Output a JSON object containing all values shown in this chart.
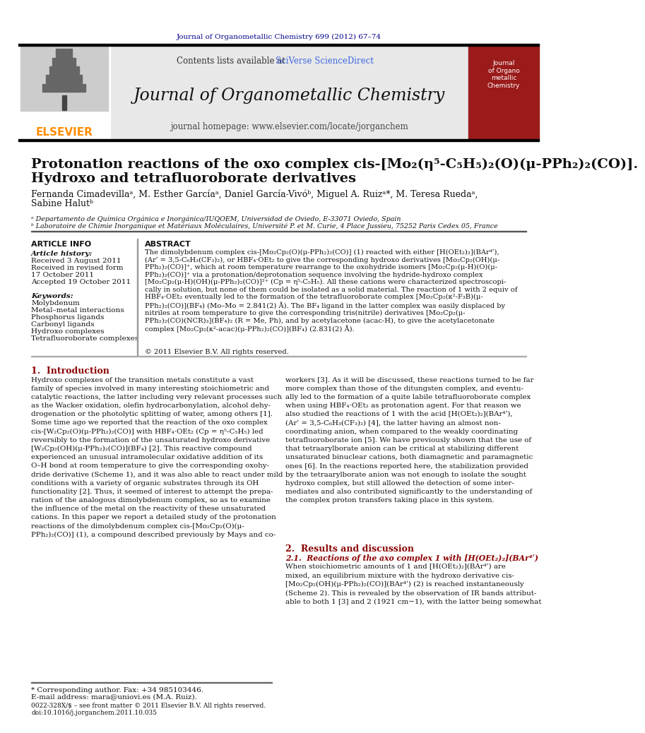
{
  "page_bg": "#ffffff",
  "top_journal_text": "Journal of Organometallic Chemistry 699 (2012) 67–74",
  "top_journal_color": "#00008B",
  "elsevier_color": "#FF8C00",
  "elsevier_text": "ELSEVIER",
  "journal_name": "Journal of Organometallic Chemistry",
  "journal_homepage": "journal homepage: www.elsevier.com/locate/jorganchem",
  "contents_text": "Contents lists available at ",
  "sciverse_text": "SciVerse ScienceDirect",
  "sciverse_color": "#4169E1",
  "title_line1": "Protonation reactions of the oxo complex cis-[Mo₂(η⁵-C₅H₅)₂(O)(μ-PPh₂)₂(CO)].",
  "title_line2": "Hydroxo and tetrafluoroborate derivatives",
  "affil_a": "ᵃ Departamento de Química Orgánica e Inorgánica/IUQOEM, Universidad de Oviedo, E-33071 Oviedo, Spain",
  "affil_b": "ᵇ Laboratoire de Chimie Inorganique et Matériaux Moléculaires, Université P. et M. Curie, 4 Place Jussieu, 75252 Paris Cedex 05, France",
  "article_info_header": "ARTICLE INFO",
  "abstract_header": "ABSTRACT",
  "article_history_label": "Article history:",
  "received_label": "Received 3 August 2011",
  "received_revised": "Received in revised form",
  "received_revised2": "17 October 2011",
  "accepted_label": "Accepted 19 October 2011",
  "keywords_label": "Keywords:",
  "kw1": "Molybdenum",
  "kw2": "Metal–metal interactions",
  "kw3": "Phosphorus ligands",
  "kw4": "Carbonyl ligands",
  "kw5": "Hydroxo complexes",
  "kw6": "Tetrafluoroborate complexes",
  "abstract_text": "The dimolybdenum complex cis-[Mo₂Cp₂(O)(μ-PPh₂)₂(CO)] (1) reacted with either [H(OEt₂)₂](BAr⁴ʹ),\n(Arʹ = 3,5-C₆H₃(CF₃)₂), or HBF₄·OEt₂ to give the corresponding hydroxo derivatives [Mo₂Cp₂(OH)(μ-\nPPh₂)₂(CO)]⁺, which at room temperature rearrange to the oxohydride isomers [Mo₂Cp₂(μ-H)(O)(μ-\nPPh₂)₂(CO)]⁺ via a protonation/deprotonation sequence involving the hydride-hydroxo complex\n[Mo₂Cp₂(μ-H)(OH)(μ-PPh₂)₂(CO)]²⁺ (Cp = η⁵-C₅H₅). All these cations were characterized spectroscopi-\ncally in solution, but none of them could be isolated as a solid material. The reaction of 1 with 2 equiv of\nHBF₄·OEt₂ eventually led to the formation of the tetrafluoroborate complex [Mo₂Cp₂(κ²-F₃B)(μ-\nPPh₂)₂(CO)](BF₄) (Mo–Mo = 2.841(2) Å). The BF₄ ligand in the latter complex was easily displaced by\nnitriles at room temperature to give the corresponding tris(nitrile) derivatives [Mo₂Cp₂(μ-\nPPh₂)₂(CO)(NCR)₃](BF₄)₂ (R = Me, Ph), and by acetylacetone (acac-H), to give the acetylacetonate\ncomplex [Mo₂Cp₂(κ²-acac)(μ-PPh₂)₂(CO)](BF₄) (2.831(2) Å).",
  "copyright_text": "© 2011 Elsevier B.V. All rights reserved.",
  "section1_header": "1.  Introduction",
  "intro_text1": "Hydroxo complexes of the transition metals constitute a vast\nfamily of species involved in many interesting stoichiometric and\ncatalytic reactions, the latter including very relevant processes such\nas the Wacker oxidation, olefin hydrocarbonylation, alcohol dehy-\ndrogenation or the photolytic splitting of water, among others [1].\nSome time ago we reported that the reaction of the oxo complex\ncis-[W₂Cp₂(O)(μ-PPh₂)₂(CO)] with HBF₄·OEt₂ (Cp = η⁵-C₅H₅) led\nreversibly to the formation of the unsaturated hydroxo derivative\n[W₂Cp₂(OH)(μ-PPh₂)₂(CO)](BF₄) [2]. This reactive compound\nexperienced an unusual intramolecular oxidative addition of its\nO–H bond at room temperature to give the corresponding oxohy-\ndride derivative (Scheme 1), and it was also able to react under mild\nconditions with a variety of organic substrates through its OH\nfunctionality [2]. Thus, it seemed of interest to attempt the prepa-\nration of the analogous dimolybdenum complex, so as to examine\nthe influence of the metal on the reactivity of these unsaturated\ncations. In this paper we report a detailed study of the protonation\nreactions of the dimolybdenum complex cis-[Mo₂Cp₂(O)(μ-\nPPh₂)₂(CO)] (1), a compound described previously by Mays and co-",
  "intro_text2": "workers [3]. As it will be discussed, these reactions turned to be far\nmore complex than those of the ditungsten complex, and eventu-\nally led to the formation of a quite labile tetrafluoroborate complex\nwhen using HBF₄·OEt₂ as protonation agent. For that reason we\nalso studied the reactions of 1 with the acid [H(OEt₂)₂](BAr⁴ʹ),\n(Arʹ = 3,5-C₆H₃(CF₃)₂) [4], the latter having an almost non-\ncoordinating anion, when compared to the weakly coordinating\ntetrafluoroborate ion [5]. We have previously shown that the use of\nthat tetraarylborate anion can be critical at stabilizing different\nunsaturated binuclear cations, both diamagnetic and paramagnetic\nones [6]. In the reactions reported here, the stabilization provided\nby the tetraarylborate anion was not enough to isolate the sought\nhydroxo complex, but still allowed the detection of some inter-\nmediates and also contributed significantly to the understanding of\nthe complex proton transfers taking place in this system.",
  "section2_header": "2.  Results and discussion",
  "subsection21_header": "2.1.  Reactions of the axo complex 1 with [H(OEt₂)₂](BAr⁴ʹ)",
  "results_text": "When stoichiometric amounts of 1 and [H(OEt₂)₂](BAr⁴ʹ) are\nmixed, an equilibrium mixture with the hydroxo derivative cis-\n[Mo₂Cp₂(OH)(μ-PPh₂)₂(CO)](BAr⁴ʹ) (2) is reached instantaneously\n(Scheme 2). This is revealed by the observation of IR bands attribut-\nable to both 1 [3] and 2 (1921 cm−1), with the latter being somewhat",
  "footnote_text": "* Corresponding author. Fax: +34 985103446.",
  "email_text": "E-mail address: mara@uniovi.es (M.A. Ruiz).",
  "bottom_text": "0022-328X/$ – see front matter © 2011 Elsevier B.V. All rights reserved.\ndoi:10.1016/j.jorganchem.2011.10.035"
}
